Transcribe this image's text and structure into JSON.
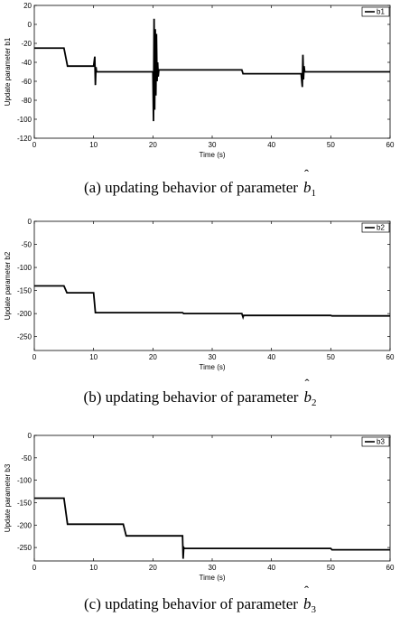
{
  "chart_data": [
    {
      "type": "line",
      "xlabel": "Time (s)",
      "ylabel": "Update parameter b1",
      "xlim": [
        0,
        60
      ],
      "ylim": [
        -120,
        20
      ],
      "xticks": [
        0,
        10,
        20,
        30,
        40,
        50,
        60
      ],
      "yticks": [
        20,
        0,
        -20,
        -40,
        -60,
        -80,
        -100,
        -120
      ],
      "legend": {
        "position": "top-right",
        "entries": [
          "b1"
        ]
      },
      "series": [
        {
          "name": "b1",
          "x": [
            0,
            5,
            5.6,
            10,
            10.2,
            10.3,
            10.4,
            10.5,
            10.6,
            20,
            20.1,
            20.2,
            20.3,
            20.4,
            20.5,
            20.6,
            20.7,
            20.8,
            20.9,
            21.0,
            21.2,
            35,
            35.2,
            45,
            45.2,
            45.3,
            45.4,
            45.5,
            45.6,
            60
          ],
          "y": [
            -25,
            -25,
            -44,
            -44,
            -34,
            -64,
            -45,
            -50,
            -50,
            -50,
            -102,
            6,
            -90,
            -5,
            -75,
            -10,
            -60,
            -40,
            -55,
            -48,
            -48,
            -48,
            -52,
            -52,
            -66,
            -32,
            -58,
            -44,
            -50,
            -50
          ]
        }
      ]
    },
    {
      "type": "line",
      "xlabel": "Time (s)",
      "ylabel": "Update parameter b2",
      "xlim": [
        0,
        60
      ],
      "ylim": [
        -280,
        0
      ],
      "xticks": [
        0,
        10,
        20,
        30,
        40,
        50,
        60
      ],
      "yticks": [
        0,
        -50,
        -100,
        -150,
        -200,
        -250
      ],
      "legend": {
        "position": "top-right",
        "entries": [
          "b2"
        ]
      },
      "series": [
        {
          "name": "b2",
          "x": [
            0,
            5,
            5.5,
            10,
            10.3,
            25,
            25.2,
            35,
            35.2,
            35.3,
            50,
            50.2,
            60
          ],
          "y": [
            -140,
            -140,
            -155,
            -155,
            -198,
            -198,
            -200,
            -200,
            -208,
            -204,
            -204,
            -205,
            -205
          ]
        }
      ]
    },
    {
      "type": "line",
      "xlabel": "Time (s)",
      "ylabel": "Update parameter b3",
      "xlim": [
        0,
        60
      ],
      "ylim": [
        -280,
        0
      ],
      "xticks": [
        0,
        10,
        20,
        30,
        40,
        50,
        60
      ],
      "yticks": [
        0,
        -50,
        -100,
        -150,
        -200,
        -250
      ],
      "legend": {
        "position": "top-right",
        "entries": [
          "b3"
        ]
      },
      "series": [
        {
          "name": "b3",
          "x": [
            0,
            5,
            5.6,
            15,
            15.5,
            25,
            25.1,
            25.2,
            25.3,
            50,
            50.2,
            60
          ],
          "y": [
            -140,
            -140,
            -198,
            -198,
            -224,
            -224,
            -275,
            -250,
            -252,
            -252,
            -255,
            -255
          ]
        }
      ]
    }
  ],
  "captions": [
    {
      "prefix": "(a)  updating  behavior  of  parameter",
      "symbol": "b",
      "subscript": "1"
    },
    {
      "prefix": "(b)  updating  behavior  of  parameter",
      "symbol": "b",
      "subscript": "2"
    },
    {
      "prefix": "(c)  updating  behavior  of  parameter",
      "symbol": "b",
      "subscript": "3"
    }
  ]
}
